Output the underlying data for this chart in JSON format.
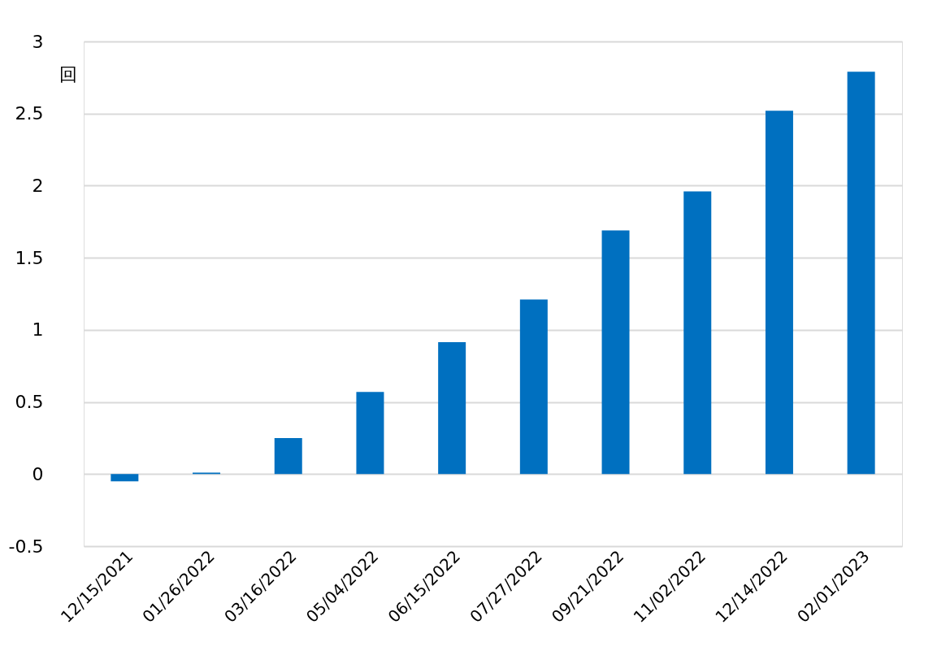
{
  "chart_data": {
    "type": "bar",
    "ylabel": "回",
    "categories": [
      "12/15/2021",
      "01/26/2022",
      "03/16/2022",
      "05/04/2022",
      "06/15/2022",
      "07/27/2022",
      "09/21/2022",
      "11/02/2022",
      "12/14/2022",
      "02/01/2023"
    ],
    "values": [
      -0.05,
      0.01,
      0.25,
      0.57,
      0.915,
      1.21,
      1.69,
      1.96,
      2.52,
      2.79
    ],
    "color": "#0070c0",
    "ylim": [
      -0.5,
      3
    ],
    "yticks": [
      -0.5,
      0,
      0.5,
      1,
      1.5,
      2,
      2.5,
      3
    ],
    "grid": "y"
  }
}
